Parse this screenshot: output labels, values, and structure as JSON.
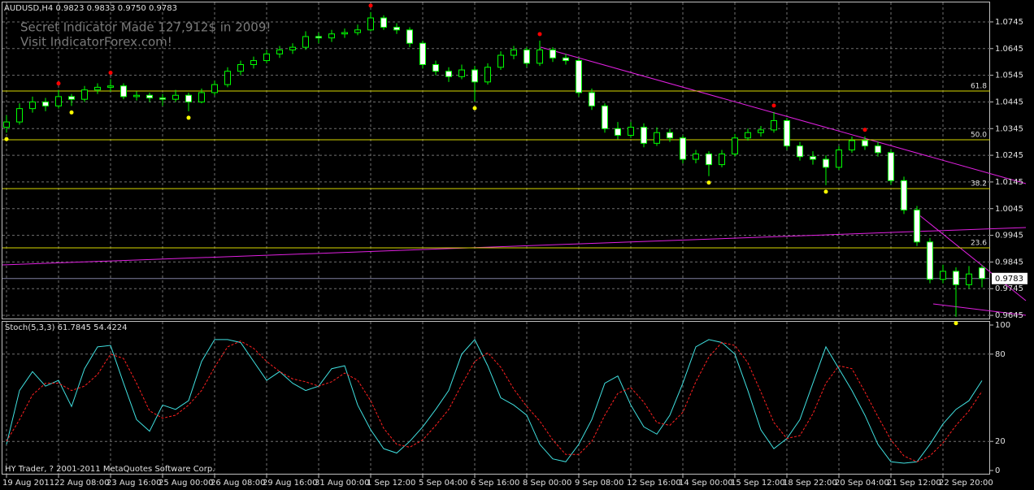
{
  "chart_data": [
    {
      "type": "candlestick",
      "title": "AUDUSD,H4  0.9823 0.9833 0.9750 0.9783",
      "annotations": [
        "Secret Indicator Made 127,912$ in 2009!",
        "Visit IndicatorForex.com!"
      ],
      "ohlc": [
        [
          1.035,
          1.0395,
          1.033,
          1.037
        ],
        [
          1.037,
          1.044,
          1.036,
          1.042
        ],
        [
          1.042,
          1.0465,
          1.0405,
          1.0445
        ],
        [
          1.0445,
          1.046,
          1.041,
          1.043
        ],
        [
          1.043,
          1.049,
          1.042,
          1.0465
        ],
        [
          1.0465,
          1.0475,
          1.043,
          1.0455
        ],
        [
          1.0455,
          1.0505,
          1.0445,
          1.049
        ],
        [
          1.049,
          1.0515,
          1.0475,
          1.05
        ],
        [
          1.05,
          1.053,
          1.0485,
          1.0505
        ],
        [
          1.0505,
          1.0515,
          1.0455,
          1.0465
        ],
        [
          1.0465,
          1.0485,
          1.045,
          1.047
        ],
        [
          1.047,
          1.048,
          1.0445,
          1.046
        ],
        [
          1.046,
          1.0475,
          1.043,
          1.0455
        ],
        [
          1.0455,
          1.049,
          1.0445,
          1.047
        ],
        [
          1.047,
          1.048,
          1.041,
          1.0445
        ],
        [
          1.0445,
          1.0495,
          1.044,
          1.048
        ],
        [
          1.048,
          1.0525,
          1.047,
          1.051
        ],
        [
          1.051,
          1.0575,
          1.05,
          1.056
        ],
        [
          1.056,
          1.06,
          1.0545,
          1.0585
        ],
        [
          1.0585,
          1.0615,
          1.057,
          1.06
        ],
        [
          1.06,
          1.064,
          1.059,
          1.0625
        ],
        [
          1.0625,
          1.0655,
          1.061,
          1.064
        ],
        [
          1.064,
          1.0665,
          1.0625,
          1.065
        ],
        [
          1.065,
          1.071,
          1.064,
          1.069
        ],
        [
          1.069,
          1.0705,
          1.0665,
          1.0685
        ],
        [
          1.0685,
          1.0715,
          1.067,
          1.07
        ],
        [
          1.07,
          1.072,
          1.0685,
          1.0705
        ],
        [
          1.0705,
          1.0735,
          1.0695,
          1.0715
        ],
        [
          1.0715,
          1.0782,
          1.071,
          1.076
        ],
        [
          1.076,
          1.077,
          1.0715,
          1.0725
        ],
        [
          1.0725,
          1.074,
          1.07,
          1.0715
        ],
        [
          1.0715,
          1.0725,
          1.065,
          1.0665
        ],
        [
          1.0665,
          1.0675,
          1.057,
          1.0585
        ],
        [
          1.0585,
          1.06,
          1.0545,
          1.056
        ],
        [
          1.056,
          1.0575,
          1.052,
          1.054
        ],
        [
          1.054,
          1.0585,
          1.053,
          1.0565
        ],
        [
          1.0565,
          1.058,
          1.0446,
          1.052
        ],
        [
          1.052,
          1.059,
          1.051,
          1.0575
        ],
        [
          1.0575,
          1.0635,
          1.0565,
          1.062
        ],
        [
          1.062,
          1.0655,
          1.0605,
          1.064
        ],
        [
          1.064,
          1.065,
          1.0575,
          1.059
        ],
        [
          1.059,
          1.0675,
          1.058,
          1.064
        ],
        [
          1.064,
          1.065,
          1.0595,
          1.061
        ],
        [
          1.061,
          1.0625,
          1.0585,
          1.06
        ],
        [
          1.06,
          1.061,
          1.0465,
          1.048
        ],
        [
          1.048,
          1.0495,
          1.0415,
          1.043
        ],
        [
          1.043,
          1.044,
          1.033,
          1.0345
        ],
        [
          1.0345,
          1.037,
          1.0305,
          1.032
        ],
        [
          1.032,
          1.037,
          1.031,
          1.035
        ],
        [
          1.035,
          1.0365,
          1.0275,
          1.029
        ],
        [
          1.029,
          1.035,
          1.028,
          1.033
        ],
        [
          1.033,
          1.0345,
          1.0295,
          1.031
        ],
        [
          1.031,
          1.032,
          1.0215,
          1.023
        ],
        [
          1.023,
          1.0265,
          1.0215,
          1.025
        ],
        [
          1.025,
          1.026,
          1.0167,
          1.021
        ],
        [
          1.021,
          1.0265,
          1.02,
          1.025
        ],
        [
          1.025,
          1.0325,
          1.024,
          1.031
        ],
        [
          1.031,
          1.0345,
          1.03,
          1.033
        ],
        [
          1.033,
          1.0355,
          1.0315,
          1.034
        ],
        [
          1.034,
          1.0407,
          1.033,
          1.0375
        ],
        [
          1.0375,
          1.0385,
          1.0265,
          1.028
        ],
        [
          1.028,
          1.0295,
          1.0225,
          1.024
        ],
        [
          1.024,
          1.026,
          1.021,
          1.023
        ],
        [
          1.023,
          1.0245,
          1.0133,
          1.02
        ],
        [
          1.02,
          1.028,
          1.019,
          1.0265
        ],
        [
          1.0265,
          1.0315,
          1.0255,
          1.03
        ],
        [
          1.03,
          1.0316,
          1.0265,
          1.028
        ],
        [
          1.028,
          1.0295,
          1.024,
          1.0255
        ],
        [
          1.0255,
          1.0265,
          1.0135,
          1.015
        ],
        [
          1.015,
          1.0165,
          1.0025,
          1.004
        ],
        [
          1.004,
          1.0055,
          0.9905,
          0.992
        ],
        [
          0.992,
          0.9935,
          0.9765,
          0.978
        ],
        [
          0.978,
          0.9835,
          0.9765,
          0.981
        ],
        [
          0.981,
          0.9825,
          0.964,
          0.976
        ],
        [
          0.976,
          0.983,
          0.9745,
          0.98
        ],
        [
          0.9823,
          0.9833,
          0.975,
          0.9783
        ]
      ],
      "up_color": "#000000",
      "down_color": "#ffffff",
      "wick_color": "#00ff00",
      "ylim": [
        0.9633,
        1.0818
      ],
      "yticks": [
        1.0745,
        1.0645,
        1.0545,
        1.0445,
        1.0345,
        1.0245,
        1.0145,
        1.0045,
        0.9945,
        0.9845,
        0.9745,
        0.9645
      ],
      "grid": true,
      "fib_levels": [
        {
          "value": 1.0486,
          "label": "61.8"
        },
        {
          "value": 1.0303,
          "label": "50.0"
        },
        {
          "value": 1.012,
          "label": "38.2"
        },
        {
          "value": 0.9898,
          "label": "23.6"
        }
      ],
      "fib_color": "#d8d800",
      "last_price": 0.9783,
      "fractals": [
        {
          "color": "#ff0000",
          "side": "up",
          "x": [
            4,
            8,
            28,
            41,
            59,
            66
          ],
          "values": [
            1.049,
            1.053,
            1.0782,
            1.0675,
            1.0407,
            1.0316
          ]
        },
        {
          "color": "#ffff00",
          "side": "down",
          "x": [
            0,
            5,
            14,
            36,
            54,
            63,
            73
          ],
          "values": [
            1.033,
            1.043,
            1.041,
            1.0446,
            1.0167,
            1.0133,
            0.964
          ]
        }
      ]
    },
    {
      "type": "line",
      "title": "Stoch(5,3,3) 61.7845 54.4224",
      "annotations": [
        "HY Trader, ? 2001-2011 MetaQuotes Software Corp."
      ],
      "series": [
        {
          "color": "#40e0e0",
          "dashed": false,
          "values": [
            18,
            55,
            68,
            58,
            62,
            44,
            70,
            85,
            86,
            60,
            35,
            27,
            45,
            42,
            48,
            75,
            90,
            90,
            88,
            75,
            62,
            68,
            60,
            55,
            58,
            70,
            72,
            45,
            28,
            15,
            12,
            20,
            30,
            42,
            55,
            80,
            90,
            72,
            50,
            45,
            38,
            18,
            8,
            6,
            18,
            35,
            60,
            65,
            45,
            30,
            25,
            38,
            60,
            85,
            90,
            88,
            80,
            55,
            28,
            15,
            22,
            35,
            60,
            85,
            70,
            55,
            38,
            18,
            6,
            5,
            6,
            18,
            32,
            42,
            48,
            61.7845
          ]
        },
        {
          "color": "#ff2020",
          "dashed": true,
          "values": [
            20,
            35,
            52,
            60,
            60,
            55,
            58,
            66,
            80,
            77,
            60,
            41,
            36,
            38,
            45,
            55,
            71,
            85,
            89,
            84,
            75,
            68,
            63,
            61,
            58,
            61,
            67,
            62,
            48,
            29,
            18,
            16,
            21,
            31,
            42,
            59,
            75,
            81,
            71,
            56,
            44,
            34,
            21,
            11,
            11,
            20,
            38,
            53,
            57,
            47,
            33,
            31,
            40,
            61,
            78,
            88,
            86,
            74,
            54,
            33,
            22,
            24,
            39,
            60,
            72,
            70,
            54,
            37,
            21,
            10,
            6,
            10,
            19,
            31,
            41,
            54.4224
          ]
        }
      ],
      "ylim": [
        0,
        100
      ],
      "yticks": [
        100,
        80,
        20,
        0
      ],
      "grid": true,
      "xticks": [
        {
          "value": 0,
          "label": "19 Aug 2011"
        },
        {
          "value": 4,
          "label": "22 Aug 08:00"
        },
        {
          "value": 8,
          "label": "23 Aug 16:00"
        },
        {
          "value": 12,
          "label": "25 Aug 00:00"
        },
        {
          "value": 16,
          "label": "26 Aug 08:00"
        },
        {
          "value": 20,
          "label": "29 Aug 16:00"
        },
        {
          "value": 24,
          "label": "31 Aug 00:00"
        },
        {
          "value": 28,
          "label": "1 Sep 12:00"
        },
        {
          "value": 32,
          "label": "5 Sep 04:00"
        },
        {
          "value": 36,
          "label": "6 Sep 16:00"
        },
        {
          "value": 40,
          "label": "8 Sep 00:00"
        },
        {
          "value": 44,
          "label": "9 Sep 08:00"
        },
        {
          "value": 48,
          "label": "12 Sep 16:00"
        },
        {
          "value": 52,
          "label": "14 Sep 00:00"
        },
        {
          "value": 56,
          "label": "15 Sep 12:00"
        },
        {
          "value": 60,
          "label": "18 Sep 22:00"
        },
        {
          "value": 64,
          "label": "20 Sep 04:00"
        },
        {
          "value": 68,
          "label": "21 Sep 12:00"
        },
        {
          "value": 72,
          "label": "22 Sep 20:00"
        }
      ]
    }
  ]
}
